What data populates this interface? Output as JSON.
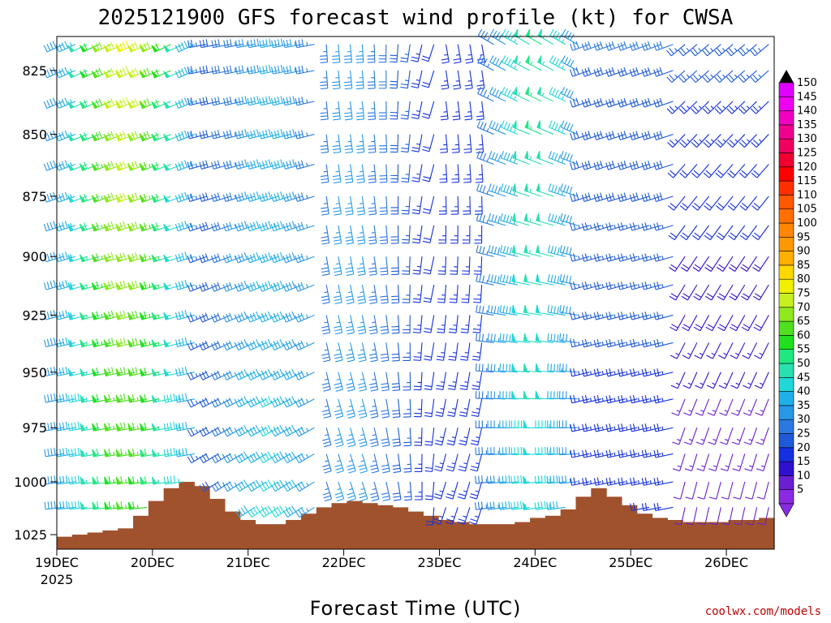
{
  "chart_data": {
    "type": "wind-barb-profile",
    "title": "2025121900 GFS forecast wind profile (kt) for CWSA",
    "xlabel": "Forecast Time (UTC)",
    "credit": "coolwx.com/models",
    "x_ticks": [
      "19DEC",
      "20DEC",
      "21DEC",
      "22DEC",
      "23DEC",
      "24DEC",
      "25DEC",
      "26DEC"
    ],
    "x_year": "2025",
    "x_range_hours": [
      0,
      180
    ],
    "y_ticks": [
      825,
      850,
      875,
      900,
      925,
      950,
      975,
      1000,
      1025
    ],
    "y_range_hPa": [
      812,
      1032
    ],
    "y_scale": "log-pressure",
    "speed_levels_kt": [
      5,
      10,
      15,
      20,
      25,
      30,
      35,
      40,
      45,
      50,
      55,
      60,
      65,
      70,
      75,
      80,
      85,
      90,
      95,
      100,
      105,
      110,
      115,
      120,
      125,
      130,
      135,
      140,
      145,
      150
    ],
    "speed_colors": [
      "#8a2be2",
      "#6a1fd0",
      "#3010d0",
      "#1530e0",
      "#1e5ad8",
      "#2a78e0",
      "#2898e8",
      "#20b0e8",
      "#20d8d8",
      "#28e0b0",
      "#20e880",
      "#20e020",
      "#50e020",
      "#90e820",
      "#c8f020",
      "#f0f000",
      "#ffd800",
      "#ffb000",
      "#ff9800",
      "#ff8800",
      "#ff7000",
      "#ff5800",
      "#ff3000",
      "#ff0000",
      "#f00030",
      "#f00060",
      "#f00090",
      "#f000c0",
      "#f000f0",
      "#e000ff"
    ],
    "barb_times_hours": [
      0,
      3,
      6,
      9,
      12,
      15,
      18,
      21,
      24,
      27,
      30,
      33,
      36,
      39,
      42,
      45,
      48,
      51,
      54,
      57,
      60,
      63,
      66,
      69,
      72,
      75,
      78,
      81,
      84,
      87,
      90,
      93,
      96,
      99,
      102,
      105,
      108,
      111,
      114,
      117,
      120,
      123,
      126,
      129,
      132,
      135,
      138,
      141,
      144,
      147,
      150,
      153,
      156,
      159,
      162,
      165,
      168,
      171,
      174,
      177
    ],
    "barb_levels_hPa": [
      815,
      825,
      837,
      850,
      862,
      875,
      887,
      900,
      912,
      925,
      937,
      950,
      962,
      975,
      987,
      1000,
      1012,
      1025
    ],
    "surface_pressure_hPa": [
      1026,
      1025,
      1024,
      1023,
      1022,
      1016,
      1009,
      1003,
      1000,
      1002,
      1008,
      1014,
      1018,
      1020,
      1020,
      1018,
      1015,
      1012,
      1010,
      1009,
      1010,
      1011,
      1012,
      1014,
      1016,
      1018,
      1019,
      1020,
      1020,
      1020,
      1019,
      1017,
      1016,
      1013,
      1007,
      1003,
      1007,
      1011,
      1015,
      1017,
      1018,
      1019,
      1019,
      1019,
      1018,
      1018,
      1017
    ]
  }
}
